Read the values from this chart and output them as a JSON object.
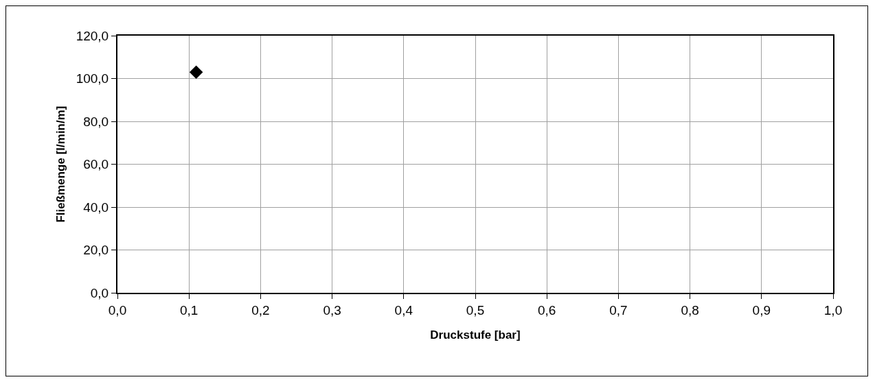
{
  "chart_data": {
    "type": "scatter",
    "xlabel": "Druckstufe [bar]",
    "ylabel": "Fließmenge [l/min/m]",
    "x": [
      0.11
    ],
    "series": [
      {
        "color": "#000000",
        "values": [
          103
        ]
      }
    ],
    "xlim": [
      0,
      1
    ],
    "ylim": [
      0,
      120
    ],
    "xticks": [
      {
        "value": 0,
        "label": "0,0"
      },
      {
        "value": 0.1,
        "label": "0,1"
      },
      {
        "value": 0.2,
        "label": "0,2"
      },
      {
        "value": 0.3,
        "label": "0,3"
      },
      {
        "value": 0.4,
        "label": "0,4"
      },
      {
        "value": 0.5,
        "label": "0,5"
      },
      {
        "value": 0.6,
        "label": "0,6"
      },
      {
        "value": 0.7,
        "label": "0,7"
      },
      {
        "value": 0.8,
        "label": "0,8"
      },
      {
        "value": 0.9,
        "label": "0,9"
      },
      {
        "value": 1,
        "label": "1,0"
      }
    ],
    "yticks": [
      {
        "value": 0,
        "label": "0,0"
      },
      {
        "value": 20,
        "label": "20,0"
      },
      {
        "value": 40,
        "label": "40,0"
      },
      {
        "value": 60,
        "label": "60,0"
      },
      {
        "value": 80,
        "label": "80,0"
      },
      {
        "value": 100,
        "label": "100,0"
      },
      {
        "value": 120,
        "label": "120,0"
      }
    ],
    "grid": true,
    "marker": "diamond"
  }
}
